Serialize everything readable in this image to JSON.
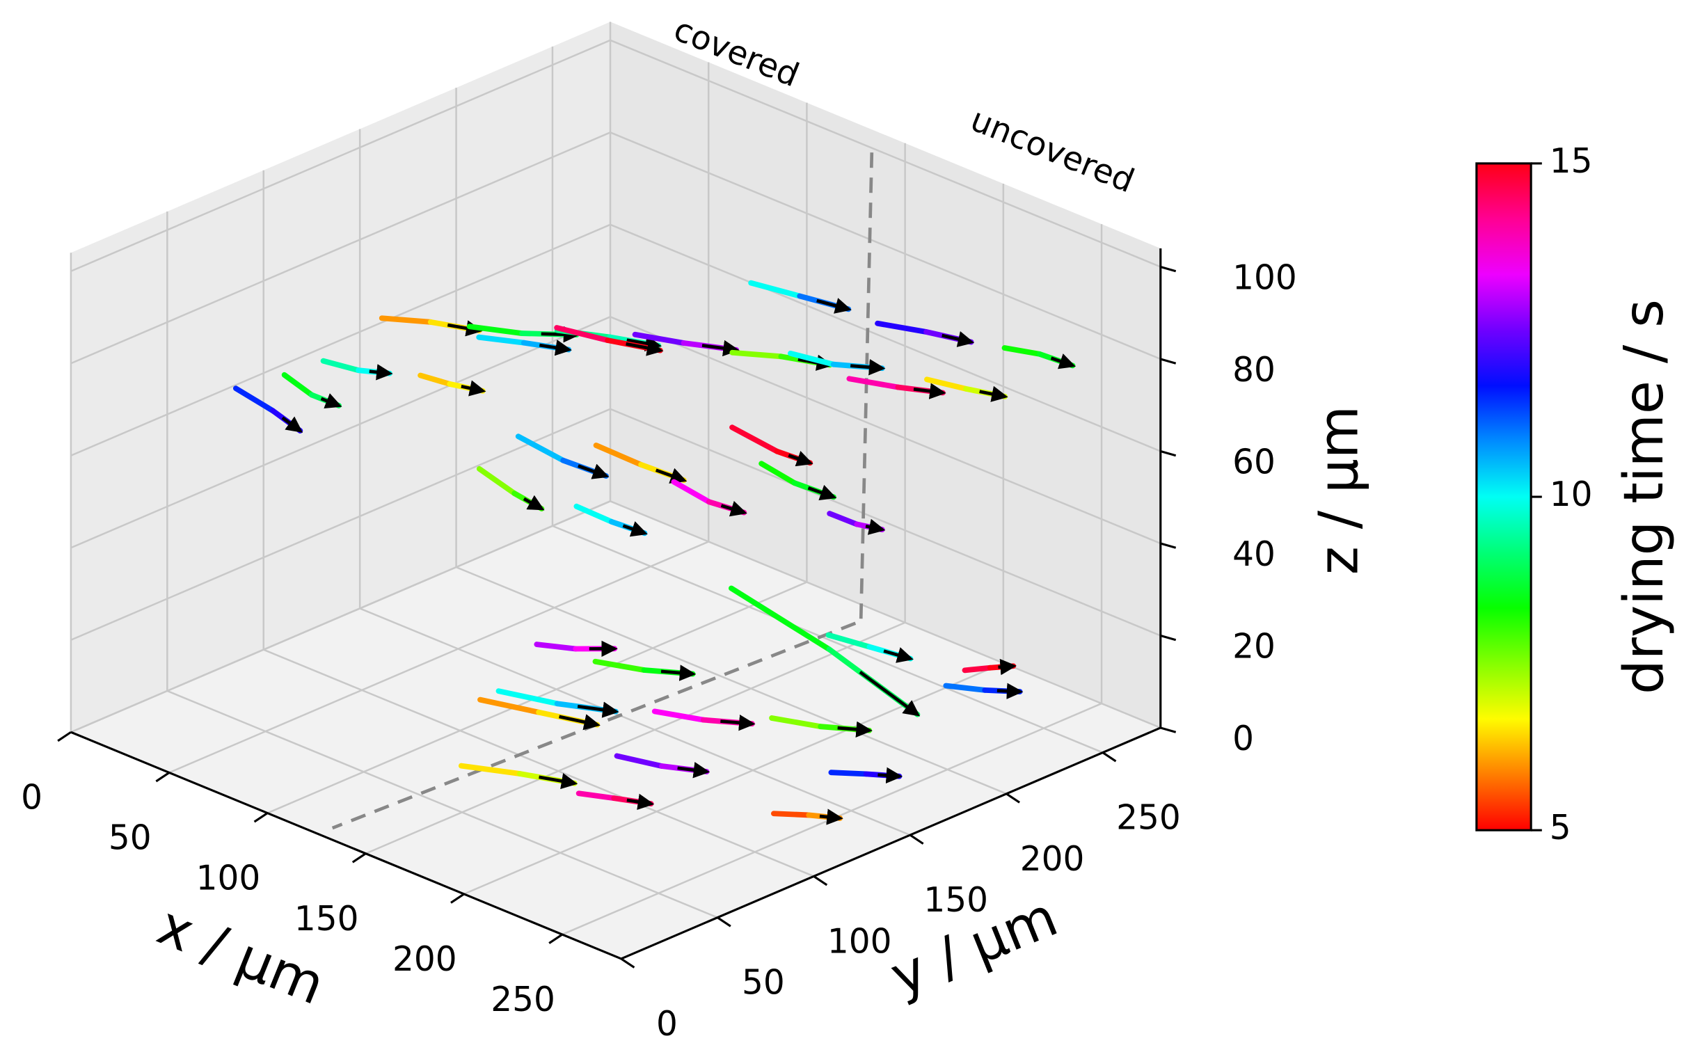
{
  "chart_data": {
    "type": "trajectory",
    "x_label": "x / μm",
    "y_label": "y / μm",
    "z_label": "z / μm",
    "annotations": [
      "covered",
      "uncovered"
    ],
    "xlim": [
      0,
      280
    ],
    "ylim": [
      0,
      280
    ],
    "zlim": [
      0,
      104
    ],
    "xticks": [
      0,
      50,
      100,
      150,
      200,
      250
    ],
    "yticks": [
      0,
      50,
      100,
      150,
      200,
      250
    ],
    "zticks": [
      0,
      20,
      40,
      60,
      80,
      100
    ],
    "grid": true,
    "arrow_color": "#000000",
    "colorbar": {
      "label": "drying time / s",
      "colormap": "hsv",
      "clim": [
        5,
        15
      ],
      "ticks": [
        5,
        10,
        15
      ]
    },
    "tracks": [
      {
        "points": [
          [
            70,
            90,
            86
          ],
          [
            85,
            100,
            86
          ],
          [
            100,
            110,
            85
          ]
        ],
        "times": [
          5.5,
          6,
          6.5
        ]
      },
      {
        "points": [
          [
            95,
            110,
            85
          ],
          [
            110,
            122,
            84
          ],
          [
            125,
            135,
            84
          ]
        ],
        "times": [
          8,
          8.5,
          9
        ]
      },
      {
        "points": [
          [
            120,
            130,
            85
          ],
          [
            135,
            142,
            84
          ],
          [
            150,
            152,
            83
          ]
        ],
        "times": [
          9,
          9.3,
          9.6
        ]
      },
      {
        "points": [
          [
            140,
            150,
            84
          ],
          [
            155,
            160,
            83
          ],
          [
            170,
            172,
            82
          ]
        ],
        "times": [
          12,
          12.5,
          13
        ]
      },
      {
        "points": [
          [
            90,
            120,
            80
          ],
          [
            105,
            128,
            80
          ],
          [
            118,
            138,
            79
          ]
        ],
        "times": [
          10,
          10.3,
          10.6
        ]
      },
      {
        "points": [
          [
            110,
            140,
            82
          ],
          [
            128,
            148,
            81
          ],
          [
            145,
            158,
            80
          ]
        ],
        "times": [
          14,
          14.5,
          15
        ]
      },
      {
        "points": [
          [
            165,
            175,
            80
          ],
          [
            180,
            185,
            80
          ],
          [
            195,
            195,
            79
          ]
        ],
        "times": [
          7,
          7.5,
          8
        ]
      },
      {
        "points": [
          [
            175,
            195,
            78
          ],
          [
            190,
            202,
            77
          ],
          [
            205,
            212,
            77
          ]
        ],
        "times": [
          9.5,
          10,
          10.5
        ]
      },
      {
        "points": [
          [
            200,
            200,
            76
          ],
          [
            215,
            210,
            75
          ],
          [
            230,
            218,
            75
          ]
        ],
        "times": [
          13.5,
          14,
          14.5
        ]
      },
      {
        "points": [
          [
            215,
            225,
            74
          ],
          [
            228,
            232,
            73
          ],
          [
            240,
            240,
            72
          ]
        ],
        "times": [
          6,
          6.5,
          7
        ]
      },
      {
        "points": [
          [
            150,
            200,
            88
          ],
          [
            165,
            210,
            86
          ],
          [
            180,
            220,
            84
          ]
        ],
        "times": [
          8.5,
          10,
          11
        ]
      },
      {
        "points": [
          [
            185,
            230,
            80
          ],
          [
            200,
            240,
            79
          ],
          [
            215,
            248,
            78
          ]
        ],
        "times": [
          11.5,
          12,
          12.5
        ]
      },
      {
        "points": [
          [
            230,
            250,
            79
          ],
          [
            240,
            258,
            78
          ],
          [
            250,
            265,
            76
          ]
        ],
        "times": [
          8,
          8.3,
          8.6
        ]
      },
      {
        "points": [
          [
            50,
            80,
            75
          ],
          [
            62,
            86,
            74
          ],
          [
            72,
            92,
            74
          ]
        ],
        "times": [
          9,
          9.5,
          10
        ]
      },
      {
        "points": [
          [
            30,
            55,
            70
          ],
          [
            42,
            62,
            66
          ],
          [
            50,
            68,
            62
          ]
        ],
        "times": [
          11,
          11.5,
          12
        ]
      },
      {
        "points": [
          [
            40,
            70,
            72
          ],
          [
            48,
            76,
            68
          ],
          [
            56,
            82,
            66
          ]
        ],
        "times": [
          8,
          8.5,
          9
        ]
      },
      {
        "points": [
          [
            70,
            110,
            70
          ],
          [
            80,
            115,
            69
          ],
          [
            90,
            122,
            68
          ]
        ],
        "times": [
          6,
          6.3,
          6.6
        ]
      },
      {
        "points": [
          [
            110,
            120,
            62
          ],
          [
            125,
            128,
            58
          ],
          [
            140,
            135,
            56
          ]
        ],
        "times": [
          10,
          10.5,
          11
        ]
      },
      {
        "points": [
          [
            130,
            140,
            60
          ],
          [
            145,
            148,
            57
          ],
          [
            160,
            155,
            55
          ]
        ],
        "times": [
          5.5,
          6,
          6.5
        ]
      },
      {
        "points": [
          [
            100,
            110,
            55
          ],
          [
            110,
            118,
            50
          ],
          [
            118,
            124,
            47
          ]
        ],
        "times": [
          7,
          7.5,
          8
        ]
      },
      {
        "points": [
          [
            150,
            160,
            52
          ],
          [
            160,
            168,
            48
          ],
          [
            170,
            176,
            46
          ]
        ],
        "times": [
          13,
          13.5,
          14
        ]
      },
      {
        "points": [
          [
            170,
            185,
            55
          ],
          [
            182,
            190,
            52
          ],
          [
            195,
            197,
            50
          ]
        ],
        "times": [
          8,
          8.3,
          8.6
        ]
      },
      {
        "points": [
          [
            120,
            140,
            45
          ],
          [
            130,
            148,
            42
          ],
          [
            140,
            155,
            40
          ]
        ],
        "times": [
          9.5,
          10,
          10.5
        ]
      },
      {
        "points": [
          [
            160,
            180,
            62
          ],
          [
            175,
            188,
            58
          ],
          [
            185,
            195,
            56
          ]
        ],
        "times": [
          14.5,
          14.8,
          15
        ]
      },
      {
        "points": [
          [
            190,
            200,
            45
          ],
          [
            198,
            206,
            43
          ],
          [
            205,
            212,
            42
          ]
        ],
        "times": [
          12,
          12.5,
          13
        ]
      },
      {
        "points": [
          [
            120,
            90,
            12
          ],
          [
            140,
            100,
            11
          ],
          [
            160,
            110,
            10
          ]
        ],
        "times": [
          5.5,
          6,
          6.5
        ]
      },
      {
        "points": [
          [
            100,
            120,
            5
          ],
          [
            120,
            130,
            4
          ],
          [
            140,
            140,
            4
          ]
        ],
        "times": [
          9.5,
          10,
          10.5
        ]
      },
      {
        "points": [
          [
            130,
            70,
            3
          ],
          [
            150,
            80,
            3
          ],
          [
            170,
            88,
            3
          ]
        ],
        "times": [
          6,
          6.5,
          7
        ]
      },
      {
        "points": [
          [
            150,
            150,
            4
          ],
          [
            165,
            160,
            3
          ],
          [
            180,
            170,
            3
          ]
        ],
        "times": [
          13,
          13.5,
          14
        ]
      },
      {
        "points": [
          [
            170,
            110,
            5
          ],
          [
            185,
            118,
            4
          ],
          [
            200,
            126,
            4
          ]
        ],
        "times": [
          12,
          12.5,
          13
        ]
      },
      {
        "points": [
          [
            190,
            170,
            6
          ],
          [
            205,
            180,
            5
          ],
          [
            220,
            190,
            5
          ]
        ],
        "times": [
          7,
          7.5,
          8
        ]
      },
      {
        "points": [
          [
            140,
            200,
            20
          ],
          [
            180,
            210,
            12
          ],
          [
            220,
            215,
            4
          ]
        ],
        "times": [
          8,
          8.5,
          9
        ]
      },
      {
        "points": [
          [
            210,
            240,
            4
          ],
          [
            220,
            250,
            3
          ],
          [
            230,
            258,
            3
          ]
        ],
        "times": [
          10.5,
          11,
          11.5
        ]
      },
      {
        "points": [
          [
            200,
            260,
            2
          ],
          [
            205,
            268,
            2
          ],
          [
            210,
            275,
            2
          ]
        ],
        "times": [
          14.5,
          14.7,
          15
        ]
      },
      {
        "points": [
          [
            230,
            160,
            3
          ],
          [
            240,
            168,
            3
          ],
          [
            250,
            175,
            3
          ]
        ],
        "times": [
          11,
          11.5,
          12
        ]
      },
      {
        "points": [
          [
            180,
            80,
            4
          ],
          [
            192,
            86,
            4
          ],
          [
            205,
            92,
            4
          ]
        ],
        "times": [
          13.5,
          14,
          14.5
        ]
      },
      {
        "points": [
          [
            110,
            160,
            6
          ],
          [
            125,
            170,
            5
          ],
          [
            140,
            180,
            5
          ]
        ],
        "times": [
          7.5,
          8,
          8.5
        ]
      },
      {
        "points": [
          [
            240,
            120,
            3
          ],
          [
            250,
            128,
            3
          ],
          [
            260,
            134,
            3
          ]
        ],
        "times": [
          5,
          5.5,
          6
        ]
      },
      {
        "points": [
          [
            160,
            230,
            8
          ],
          [
            175,
            236,
            7
          ],
          [
            190,
            242,
            6
          ]
        ],
        "times": [
          9,
          9.5,
          10
        ]
      },
      {
        "points": [
          [
            90,
            150,
            8
          ],
          [
            100,
            160,
            7
          ],
          [
            110,
            170,
            7
          ]
        ],
        "times": [
          12.5,
          13,
          13.5
        ]
      }
    ]
  }
}
